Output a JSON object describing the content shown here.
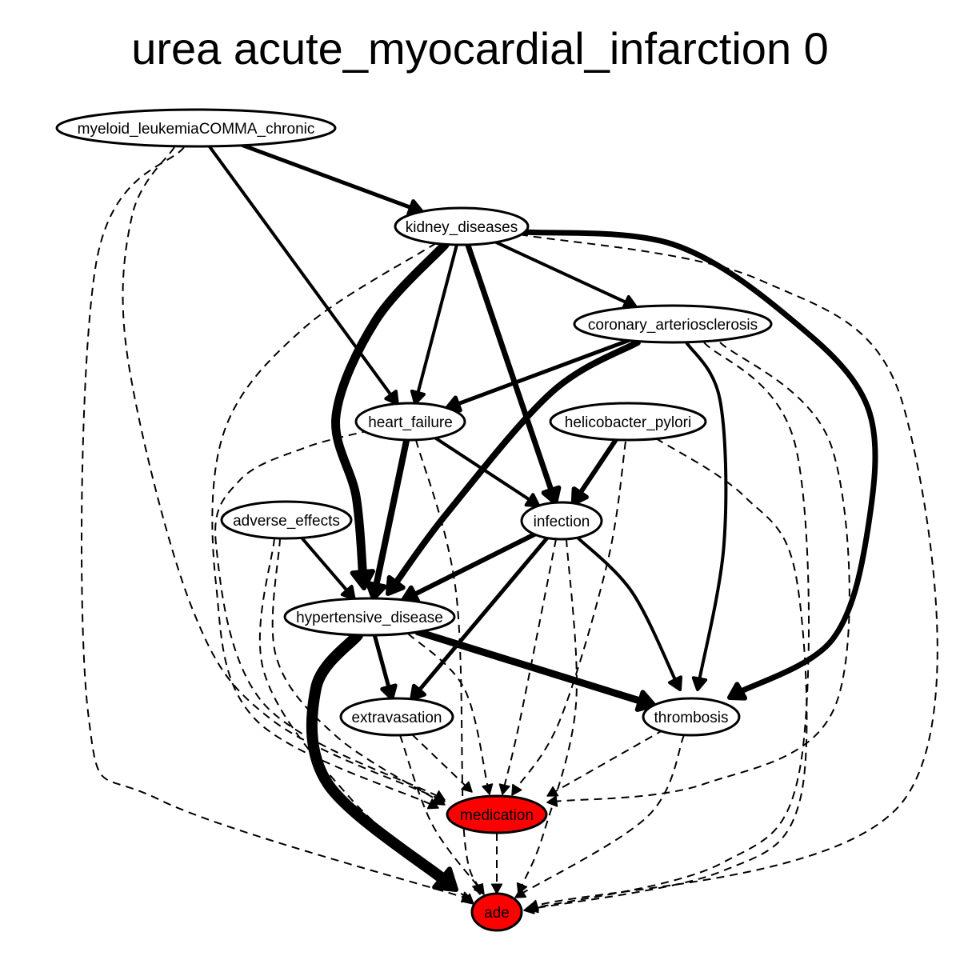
{
  "title": "urea acute_myocardial_infarction 0",
  "colors": {
    "highlight": "#ff0000",
    "default_fill": "#ffffff",
    "stroke": "#000000"
  },
  "nodes": [
    {
      "id": "myeloid",
      "label": "myeloid_leukemiaCOMMA_chronic",
      "highlight": false
    },
    {
      "id": "kidney",
      "label": "kidney_diseases",
      "highlight": false
    },
    {
      "id": "coronary",
      "label": "coronary_arteriosclerosis",
      "highlight": false
    },
    {
      "id": "heart",
      "label": "heart_failure",
      "highlight": false
    },
    {
      "id": "helico",
      "label": "helicobacter_pylori",
      "highlight": false
    },
    {
      "id": "adverse",
      "label": "adverse_effects",
      "highlight": false
    },
    {
      "id": "infection",
      "label": "infection",
      "highlight": false
    },
    {
      "id": "hyper",
      "label": "hypertensive_disease",
      "highlight": false
    },
    {
      "id": "extrav",
      "label": "extravasation",
      "highlight": false
    },
    {
      "id": "thromb",
      "label": "thrombosis",
      "highlight": false
    },
    {
      "id": "medication",
      "label": "medication",
      "highlight": true
    },
    {
      "id": "ade",
      "label": "ade",
      "highlight": true
    }
  ],
  "edges": [
    {
      "from": "myeloid",
      "to": "kidney",
      "style": "solid",
      "weight": 5
    },
    {
      "from": "myeloid",
      "to": "heart",
      "style": "solid",
      "weight": 4
    },
    {
      "from": "myeloid",
      "to": "medication",
      "style": "dashed",
      "weight": 2
    },
    {
      "from": "myeloid",
      "to": "ade",
      "style": "dashed",
      "weight": 2
    },
    {
      "from": "kidney",
      "to": "coronary",
      "style": "solid",
      "weight": 4
    },
    {
      "from": "kidney",
      "to": "heart",
      "style": "solid",
      "weight": 4
    },
    {
      "from": "kidney",
      "to": "hyper",
      "style": "solid",
      "weight": 11
    },
    {
      "from": "kidney",
      "to": "infection",
      "style": "solid",
      "weight": 7
    },
    {
      "from": "kidney",
      "to": "thromb",
      "style": "solid",
      "weight": 7
    },
    {
      "from": "kidney",
      "to": "medication",
      "style": "dashed",
      "weight": 2
    },
    {
      "from": "kidney",
      "to": "ade",
      "style": "dashed",
      "weight": 2
    },
    {
      "from": "coronary",
      "to": "heart",
      "style": "solid",
      "weight": 5
    },
    {
      "from": "coronary",
      "to": "hyper",
      "style": "solid",
      "weight": 8
    },
    {
      "from": "coronary",
      "to": "thromb",
      "style": "solid",
      "weight": 4
    },
    {
      "from": "coronary",
      "to": "medication",
      "style": "dashed",
      "weight": 2
    },
    {
      "from": "coronary",
      "to": "ade",
      "style": "dashed",
      "weight": 2
    },
    {
      "from": "heart",
      "to": "hyper",
      "style": "solid",
      "weight": 8
    },
    {
      "from": "heart",
      "to": "infection",
      "style": "solid",
      "weight": 4
    },
    {
      "from": "heart",
      "to": "medication",
      "style": "dashed",
      "weight": 2
    },
    {
      "from": "heart",
      "to": "ade",
      "style": "dashed",
      "weight": 2
    },
    {
      "from": "helico",
      "to": "infection",
      "style": "solid",
      "weight": 6
    },
    {
      "from": "helico",
      "to": "medication",
      "style": "dashed",
      "weight": 2
    },
    {
      "from": "helico",
      "to": "ade",
      "style": "dashed",
      "weight": 2
    },
    {
      "from": "adverse",
      "to": "hyper",
      "style": "solid",
      "weight": 4
    },
    {
      "from": "adverse",
      "to": "medication",
      "style": "dashed",
      "weight": 2
    },
    {
      "from": "adverse",
      "to": "ade",
      "style": "dashed",
      "weight": 2
    },
    {
      "from": "infection",
      "to": "hyper",
      "style": "solid",
      "weight": 6
    },
    {
      "from": "infection",
      "to": "extrav",
      "style": "solid",
      "weight": 5
    },
    {
      "from": "infection",
      "to": "thromb",
      "style": "solid",
      "weight": 4
    },
    {
      "from": "infection",
      "to": "medication",
      "style": "dashed",
      "weight": 2
    },
    {
      "from": "infection",
      "to": "ade",
      "style": "dashed",
      "weight": 2
    },
    {
      "from": "hyper",
      "to": "extrav",
      "style": "solid",
      "weight": 5
    },
    {
      "from": "hyper",
      "to": "thromb",
      "style": "solid",
      "weight": 9
    },
    {
      "from": "hyper",
      "to": "ade",
      "style": "solid",
      "weight": 14
    },
    {
      "from": "hyper",
      "to": "medication",
      "style": "dashed",
      "weight": 2
    },
    {
      "from": "extrav",
      "to": "medication",
      "style": "dashed",
      "weight": 2
    },
    {
      "from": "extrav",
      "to": "ade",
      "style": "dashed",
      "weight": 2
    },
    {
      "from": "thromb",
      "to": "medication",
      "style": "dashed",
      "weight": 2
    },
    {
      "from": "thromb",
      "to": "ade",
      "style": "dashed",
      "weight": 2
    },
    {
      "from": "medication",
      "to": "ade",
      "style": "dashed",
      "weight": 2
    }
  ]
}
